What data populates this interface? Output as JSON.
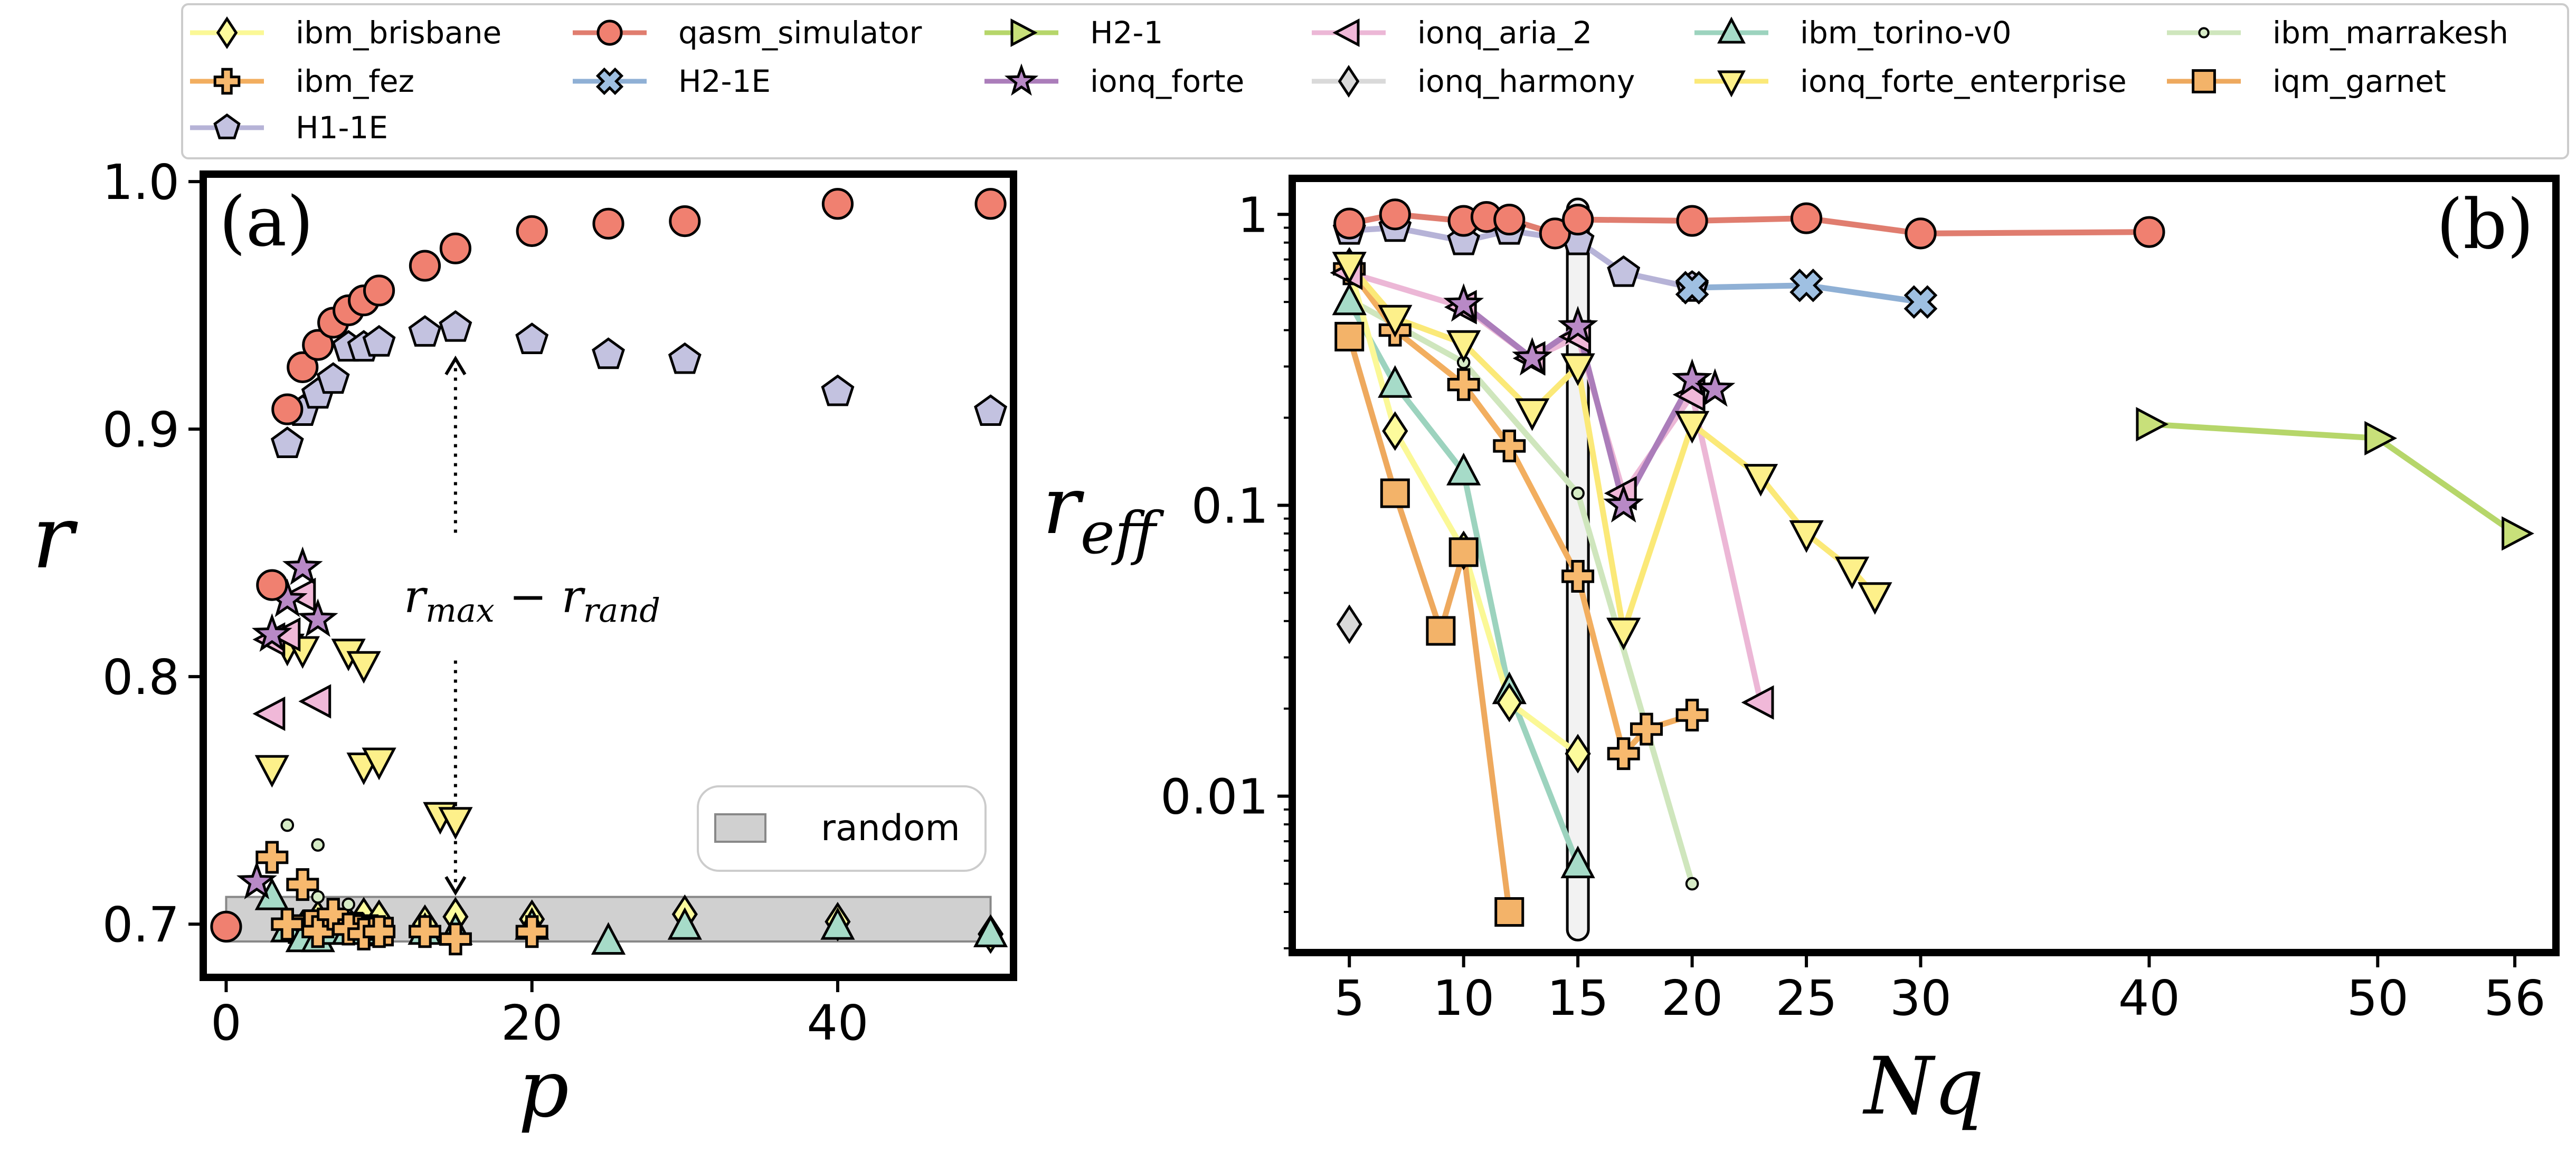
{
  "chart_data": [
    {
      "type": "scatter",
      "panel_label": "(a)",
      "xlabel": "p",
      "ylabel": "r",
      "xlim": [
        -1.5,
        51.5
      ],
      "ylim": [
        0.6785,
        1.003
      ],
      "xticks": [
        0,
        20,
        40
      ],
      "yticks": [
        0.7,
        0.8,
        0.9,
        1.0
      ],
      "yticklabels": [
        "0.7",
        "0.8",
        "0.9",
        "1.0"
      ],
      "grid": false,
      "random_band": {
        "label": "random",
        "x": [
          0,
          50
        ],
        "y": [
          0.693,
          0.711
        ]
      },
      "annotation": {
        "text_main_1": "r",
        "text_sub_1": "max",
        "text_mid": " − r",
        "text_sub_2": "rand",
        "x": 15,
        "arrow_top": 0.937,
        "arrow_bottom": 0.711
      },
      "series": [
        {
          "name": "qasm_simulator",
          "points": [
            [
              0,
              0.699
            ],
            [
              3,
              0.837
            ],
            [
              4,
              0.908
            ],
            [
              5,
              0.925
            ],
            [
              6,
              0.934
            ],
            [
              7,
              0.943
            ],
            [
              8,
              0.948
            ],
            [
              9,
              0.952
            ],
            [
              10,
              0.956
            ],
            [
              13,
              0.966
            ],
            [
              15,
              0.973
            ],
            [
              20,
              0.98
            ],
            [
              25,
              0.983
            ],
            [
              30,
              0.984
            ],
            [
              40,
              0.991
            ],
            [
              50,
              0.991
            ]
          ]
        },
        {
          "name": "H1-1E",
          "points": [
            [
              4,
              0.894
            ],
            [
              5,
              0.907
            ],
            [
              6,
              0.914
            ],
            [
              7,
              0.92
            ],
            [
              8,
              0.933
            ],
            [
              9,
              0.933
            ],
            [
              10,
              0.935
            ],
            [
              13,
              0.939
            ],
            [
              15,
              0.941
            ],
            [
              20,
              0.936
            ],
            [
              25,
              0.93
            ],
            [
              30,
              0.928
            ],
            [
              40,
              0.915
            ],
            [
              50,
              0.907
            ]
          ]
        },
        {
          "name": "ionq_forte",
          "points": [
            [
              2,
              0.717
            ],
            [
              3,
              0.817
            ],
            [
              4,
              0.831
            ],
            [
              5,
              0.844
            ],
            [
              6,
              0.823
            ]
          ]
        },
        {
          "name": "ionq_aria_2",
          "points": [
            [
              3,
              0.785
            ],
            [
              3,
              0.815
            ],
            [
              4,
              0.817
            ],
            [
              5,
              0.833
            ],
            [
              6,
              0.79
            ]
          ]
        },
        {
          "name": "ionq_forte_enterprise",
          "points": [
            [
              3,
              0.763
            ],
            [
              4,
              0.812
            ],
            [
              5,
              0.811
            ],
            [
              8,
              0.81
            ],
            [
              9,
              0.805
            ],
            [
              9,
              0.764
            ],
            [
              10,
              0.766
            ],
            [
              14,
              0.744
            ],
            [
              15,
              0.742
            ]
          ]
        },
        {
          "name": "ibm_marrakesh",
          "points": [
            [
              4,
              0.74
            ],
            [
              6,
              0.732
            ],
            [
              8,
              0.708
            ],
            [
              6,
              0.711
            ]
          ]
        },
        {
          "name": "ibm_fez",
          "points": [
            [
              3,
              0.727
            ],
            [
              5,
              0.716
            ],
            [
              4,
              0.7
            ],
            [
              6,
              0.697
            ],
            [
              7,
              0.704
            ],
            [
              8,
              0.698
            ],
            [
              9,
              0.696
            ],
            [
              10,
              0.697
            ],
            [
              13,
              0.697
            ],
            [
              15,
              0.694
            ],
            [
              20,
              0.697
            ]
          ]
        },
        {
          "name": "ibm_torino-v0",
          "points": [
            [
              3,
              0.711
            ],
            [
              4,
              0.698
            ],
            [
              5,
              0.694
            ],
            [
              6,
              0.694
            ],
            [
              7,
              0.697
            ],
            [
              8,
              0.697
            ],
            [
              9,
              0.697
            ],
            [
              13,
              0.697
            ],
            [
              15,
              0.697
            ],
            [
              20,
              0.699
            ],
            [
              25,
              0.693
            ],
            [
              30,
              0.699
            ],
            [
              40,
              0.699
            ],
            [
              50,
              0.696
            ]
          ]
        },
        {
          "name": "ibm_brisbane",
          "points": [
            [
              5,
              0.698
            ],
            [
              6,
              0.702
            ],
            [
              7,
              0.702
            ],
            [
              8,
              0.7
            ],
            [
              9,
              0.703
            ],
            [
              10,
              0.702
            ],
            [
              13,
              0.7
            ],
            [
              15,
              0.703
            ],
            [
              20,
              0.702
            ],
            [
              30,
              0.704
            ],
            [
              40,
              0.701
            ],
            [
              50,
              0.696
            ]
          ]
        },
        {
          "name": "iqm_garnet",
          "points": [
            [
              5,
              0.698
            ],
            [
              6,
              0.7
            ],
            [
              7,
              0.698
            ],
            [
              8,
              0.699
            ],
            [
              9,
              0.698
            ],
            [
              10,
              0.697
            ]
          ]
        }
      ]
    },
    {
      "type": "line",
      "panel_label": "(b)",
      "xlabel": "Nq",
      "ylabel_main": "r",
      "ylabel_sub": "eff",
      "yscale": "log",
      "xlim": [
        2.5,
        57.8
      ],
      "ylim": [
        0.0029,
        1.33
      ],
      "xticks": [
        5,
        10,
        15,
        20,
        25,
        30,
        40,
        50,
        56
      ],
      "yticks": [
        0.01,
        0.1,
        1
      ],
      "yticklabels": [
        "0.01",
        "0.1",
        "1"
      ],
      "grid": false,
      "highlight_x": 15,
      "series": [
        {
          "name": "qasm_simulator",
          "x": [
            5,
            7,
            10,
            11,
            12,
            14,
            15,
            20,
            25,
            30,
            40
          ],
          "y": [
            0.93,
            1.0,
            0.95,
            0.98,
            0.96,
            0.86,
            0.96,
            0.95,
            0.97,
            0.86,
            0.87
          ]
        },
        {
          "name": "H1-1E",
          "x": [
            5,
            7,
            10,
            12,
            15,
            17,
            20
          ],
          "y": [
            0.88,
            0.9,
            0.81,
            0.88,
            0.81,
            0.63,
            0.56
          ]
        },
        {
          "name": "H2-1E",
          "x": [
            20,
            25,
            30
          ],
          "y": [
            0.56,
            0.57,
            0.5
          ]
        },
        {
          "name": "H2-1",
          "x": [
            40,
            50,
            56
          ],
          "y": [
            0.19,
            0.17,
            0.08
          ]
        },
        {
          "name": "ionq_aria_2",
          "x": [
            5,
            10,
            13,
            15,
            17,
            20,
            23
          ],
          "y": [
            0.63,
            0.48,
            0.32,
            0.38,
            0.11,
            0.24,
            0.021
          ]
        },
        {
          "name": "ionq_forte",
          "x": [
            10,
            13,
            15,
            17,
            20,
            21
          ],
          "y": [
            0.49,
            0.32,
            0.41,
            0.1,
            0.27,
            0.25
          ]
        },
        {
          "name": "ionq_forte_enterprise",
          "x": [
            5,
            7,
            10,
            13,
            15,
            17,
            20,
            23,
            25,
            27,
            28
          ],
          "y": [
            0.67,
            0.44,
            0.36,
            0.21,
            0.3,
            0.037,
            0.19,
            0.125,
            0.08,
            0.06,
            0.049
          ]
        },
        {
          "name": "ionq_harmony",
          "x": [
            5
          ],
          "y": [
            0.039
          ]
        },
        {
          "name": "ibm_marrakesh",
          "x": [
            5,
            10,
            15,
            20
          ],
          "y": [
            0.51,
            0.31,
            0.11,
            0.005
          ]
        },
        {
          "name": "ibm_brisbane",
          "x": [
            5,
            7,
            10,
            12,
            15
          ],
          "y": [
            0.66,
            0.18,
            0.07,
            0.021,
            0.014
          ]
        },
        {
          "name": "ibm_fez",
          "x": [
            5,
            7,
            10,
            12,
            15,
            17,
            18,
            20
          ],
          "y": [
            0.65,
            0.4,
            0.26,
            0.16,
            0.057,
            0.014,
            0.017,
            0.019
          ]
        },
        {
          "name": "ibm_torino-v0",
          "x": [
            5,
            7,
            10,
            12,
            15
          ],
          "y": [
            0.5,
            0.26,
            0.13,
            0.023,
            0.0058
          ]
        },
        {
          "name": "iqm_garnet",
          "x": [
            5,
            7,
            9,
            10,
            12
          ],
          "y": [
            0.38,
            0.11,
            0.037,
            0.069,
            0.004
          ]
        }
      ]
    }
  ],
  "legend": {
    "placement": "top, 6 columns",
    "entries": [
      {
        "name": "ibm_brisbane",
        "color": "#fdfb9c",
        "marker": "diamond"
      },
      {
        "name": "qasm_simulator",
        "color": "#f08070",
        "marker": "circle"
      },
      {
        "name": "H2-1",
        "color": "#c8e07a",
        "marker": "triangle-right"
      },
      {
        "name": "ionq_aria_2",
        "color": "#f0b8d8",
        "marker": "triangle-left"
      },
      {
        "name": "ibm_torino-v0",
        "color": "#a6dbc8",
        "marker": "triangle-up"
      },
      {
        "name": "ibm_marrakesh",
        "color": "#d6ebc6",
        "marker": "small-circle"
      },
      {
        "name": "ibm_fez",
        "color": "#f7b96e",
        "marker": "plus"
      },
      {
        "name": "H2-1E",
        "color": "#9fc0e2",
        "marker": "x"
      },
      {
        "name": "ionq_forte",
        "color": "#b889c6",
        "marker": "star"
      },
      {
        "name": "ionq_harmony",
        "color": "#d9d9d9",
        "marker": "diamond"
      },
      {
        "name": "ionq_forte_enterprise",
        "color": "#fdf08a",
        "marker": "triangle-down"
      },
      {
        "name": "iqm_garnet",
        "color": "#f3b369",
        "marker": "square"
      },
      {
        "name": "H1-1E",
        "color": "#c3c2e0",
        "marker": "pentagon"
      }
    ]
  },
  "colors": {
    "qasm_simulator_line": "#e07d6f",
    "H1-1E_line": "#b6b3d7",
    "H2-1E_line": "#8fb0d5",
    "H2-1_line": "#b6d66a",
    "ionq_aria_2_line": "#ecb7d6",
    "ionq_forte_line": "#ab7dba",
    "ionq_forte_enterprise_line": "#fbe978",
    "ibm_marrakesh_line": "#cfe6bd",
    "ibm_brisbane_line": "#fbf896",
    "ibm_fez_line": "#f2ae5f",
    "ibm_torino-v0_line": "#9cd3be",
    "iqm_garnet_line": "#eea95e",
    "random_fill": "#d0d0d0",
    "random_edge": "#888888"
  }
}
